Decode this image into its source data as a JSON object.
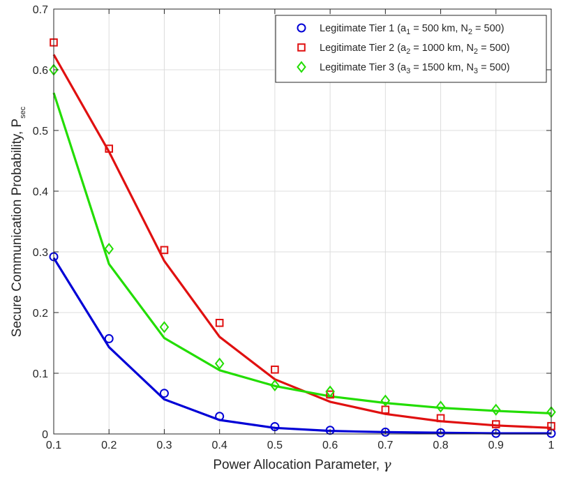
{
  "chart_data": {
    "type": "line",
    "title": "",
    "xlabel": "Power Allocation Parameter, ",
    "xlabel_symbol": "γ",
    "ylabel": "Secure Communication Probability, P",
    "ylabel_sub": "sec",
    "xlim": [
      0.1,
      1.0
    ],
    "ylim": [
      0,
      0.7
    ],
    "xticks": [
      0.1,
      0.2,
      0.3,
      0.4,
      0.5,
      0.6,
      0.7,
      0.8,
      0.9,
      1.0
    ],
    "xtick_labels": [
      "0.1",
      "0.2",
      "0.3",
      "0.4",
      "0.5",
      "0.6",
      "0.7",
      "0.8",
      "0.9",
      "1"
    ],
    "yticks": [
      0,
      0.1,
      0.2,
      0.3,
      0.4,
      0.5,
      0.6,
      0.7
    ],
    "ytick_labels": [
      "0",
      "0.1",
      "0.2",
      "0.3",
      "0.4",
      "0.5",
      "0.6",
      "0.7"
    ],
    "grid": true,
    "legend_position": "top-right",
    "x": [
      0.1,
      0.2,
      0.3,
      0.4,
      0.5,
      0.6,
      0.7,
      0.8,
      0.9,
      1.0
    ],
    "series": [
      {
        "name": "Legitimate Tier 1",
        "legend_parts": [
          "Legitimate Tier 1 (a",
          "1",
          " = 500 km, N",
          "2",
          " = 500)"
        ],
        "color": "#0000d6",
        "marker": "circle",
        "line_values": [
          0.29,
          0.143,
          0.057,
          0.023,
          0.01,
          0.005,
          0.003,
          0.002,
          0.001,
          0.001
        ],
        "marker_values": [
          0.292,
          0.157,
          0.067,
          0.029,
          0.012,
          0.006,
          0.003,
          0.002,
          0.001,
          0.001
        ]
      },
      {
        "name": "Legitimate Tier 2",
        "legend_parts": [
          "Legitimate Tier 2 (a",
          "2",
          " = 1000 km, N",
          "2",
          " = 500)"
        ],
        "color": "#e01010",
        "marker": "square",
        "line_values": [
          0.625,
          0.465,
          0.285,
          0.16,
          0.09,
          0.053,
          0.033,
          0.021,
          0.014,
          0.01
        ],
        "marker_values": [
          0.645,
          0.47,
          0.303,
          0.183,
          0.106,
          0.065,
          0.04,
          0.026,
          0.016,
          0.013
        ]
      },
      {
        "name": "Legitimate Tier 3",
        "legend_parts": [
          "Legitimate Tier 3 (a",
          "3",
          " = 1500 km, N",
          "3",
          " = 500)"
        ],
        "color": "#22dd00",
        "marker": "diamond",
        "line_values": [
          0.562,
          0.28,
          0.158,
          0.105,
          0.079,
          0.062,
          0.051,
          0.043,
          0.038,
          0.034
        ],
        "marker_values": [
          0.6,
          0.305,
          0.176,
          0.116,
          0.08,
          0.07,
          0.055,
          0.045,
          0.04,
          0.036
        ]
      }
    ]
  }
}
